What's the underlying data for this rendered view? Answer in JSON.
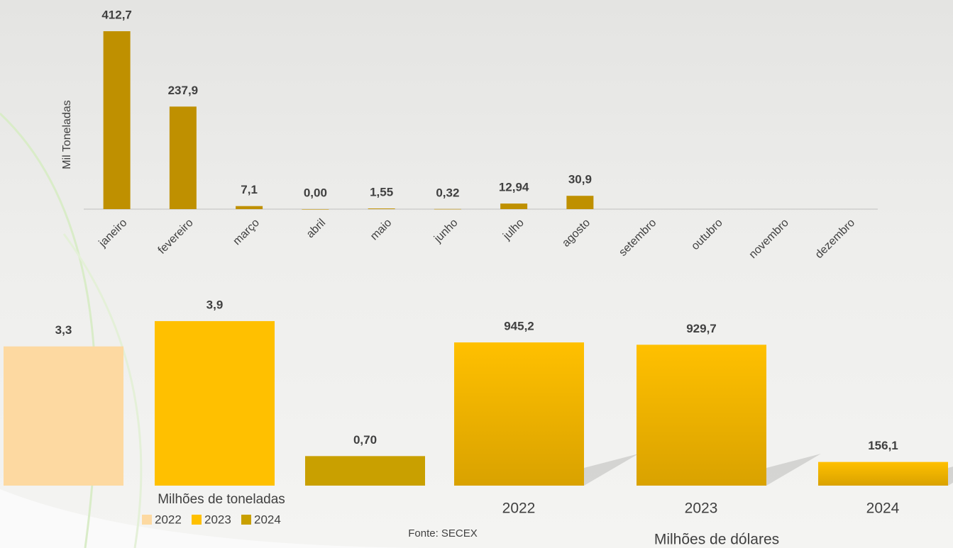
{
  "chart_data": [
    {
      "type": "bar",
      "ylabel": "Mil Toneladas",
      "categories": [
        "janeiro",
        "fevereiro",
        "março",
        "abril",
        "maio",
        "junho",
        "julho",
        "agosto",
        "setembro",
        "outubro",
        "novembro",
        "dezembro"
      ],
      "values": [
        412.7,
        237.9,
        7.1,
        0.0,
        1.55,
        0.32,
        12.94,
        30.9,
        null,
        null,
        null,
        null
      ],
      "value_labels": [
        "412,7",
        "237,9",
        "7,1",
        "0,00",
        "1,55",
        "0,32",
        "12,94",
        "30,9",
        null,
        null,
        null,
        null
      ],
      "color": "#bf9000",
      "ylim": [
        0,
        420
      ]
    },
    {
      "type": "bar",
      "xlabel": "Milhões de toneladas",
      "legend": "bottom",
      "series": [
        {
          "name": "2022",
          "color": "#fdd9a1",
          "values": [
            3.3
          ],
          "value_labels": [
            "3,3"
          ]
        },
        {
          "name": "2023",
          "color": "#ffc000",
          "values": [
            3.9
          ],
          "value_labels": [
            "3,9"
          ]
        },
        {
          "name": "2024",
          "color": "#c9a000",
          "values": [
            0.7
          ],
          "value_labels": [
            "0,70"
          ]
        }
      ],
      "ylim": [
        0,
        4
      ]
    },
    {
      "type": "bar",
      "xlabel": "Milhões de dólares",
      "categories": [
        "2022",
        "2023",
        "2024"
      ],
      "values": [
        945.2,
        929.7,
        156.1
      ],
      "value_labels": [
        "945,2",
        "929,7",
        "156,1"
      ],
      "color": "#e2ab00",
      "ylim": [
        0,
        1000
      ]
    }
  ],
  "source": "Fonte: SECEX"
}
